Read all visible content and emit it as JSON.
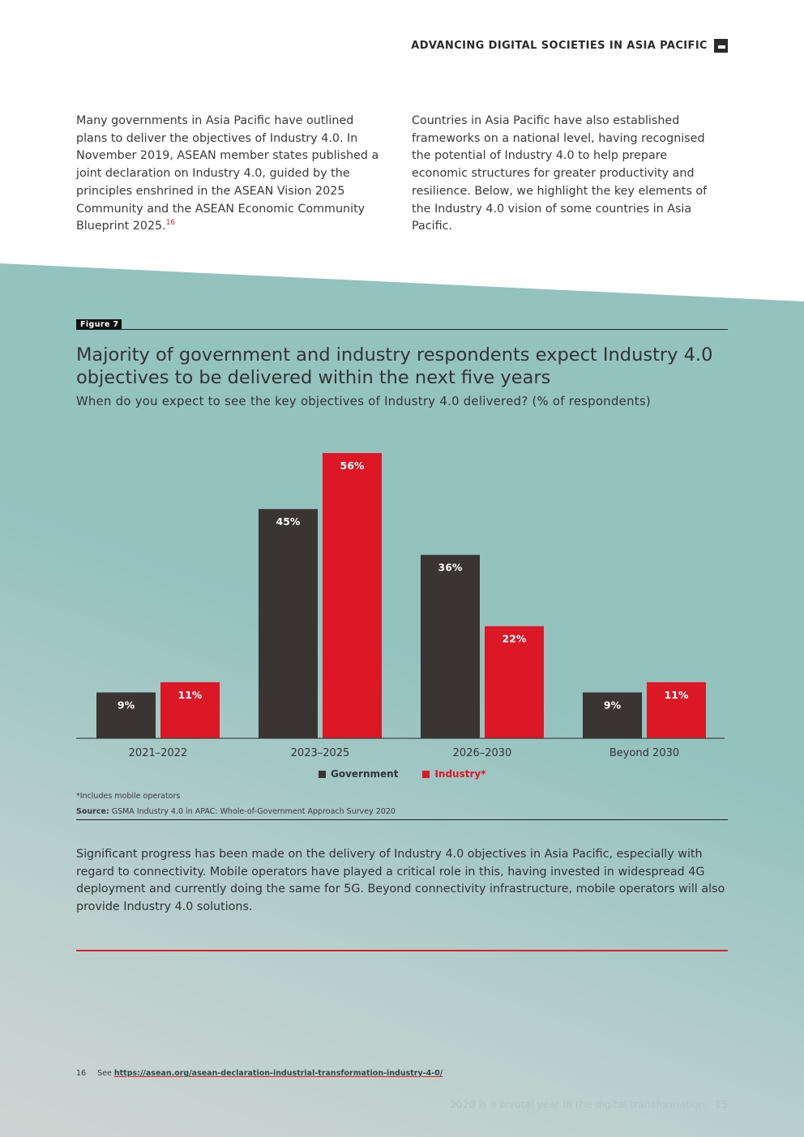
{
  "header": {
    "title": "ADVANCING DIGITAL SOCIETIES IN ASIA PACIFIC",
    "logo_icon": "report-logo-icon"
  },
  "intro": {
    "left_text": "Many governments in Asia Pacific have outlined plans to deliver the objectives of Industry 4.0. In November 2019, ASEAN member states published a joint declaration on Industry 4.0, guided by the principles enshrined in the ASEAN Vision 2025 Community and the ASEAN Economic Community Blueprint 2025.",
    "left_footnote_ref": "16",
    "right_text": "Countries in Asia Pacific have also established frameworks on a national level, having recognised the potential of Industry 4.0 to help prepare economic structures for greater productivity and resilience. Below, we highlight the key elements of the Industry 4.0 vision of some countries in Asia Pacific."
  },
  "figure": {
    "tag": "Figure 7",
    "title": "Majority of government and industry respondents expect Industry 4.0 objectives to be delivered within the next five years",
    "subtitle": "When do you expect to see the key objectives of Industry 4.0 delivered? (% of respondents)",
    "note": "*Includes mobile operators",
    "source_label": "Source:",
    "source_text": " GSMA Industry 4.0 in APAC: Whole-of-Government Approach Survey 2020"
  },
  "chart_data": {
    "type": "bar",
    "categories": [
      "2021–2022",
      "2023–2025",
      "2026–2030",
      "Beyond 2030"
    ],
    "series": [
      {
        "name": "Government",
        "values": [
          9,
          45,
          36,
          9
        ],
        "color": "#3a3533"
      },
      {
        "name": "Industry*",
        "values": [
          11,
          56,
          22,
          11
        ],
        "color": "#dc1726"
      }
    ],
    "unit": "%",
    "ylim": [
      0,
      56
    ],
    "legend_position": "bottom-center",
    "grid": false
  },
  "body": {
    "paragraph": "Significant progress has been made on the delivery of Industry 4.0 objectives in Asia Pacific, especially with regard to connectivity. Mobile operators have played a critical role in this, having invested in widespread 4G deployment and currently doing the same for 5G. Beyond connectivity infrastructure, mobile operators will also provide Industry 4.0 solutions."
  },
  "footnote": {
    "number": "16",
    "prefix": "See",
    "link": "https://asean.org/asean-declaration-industrial-transformation-industry-4-0/"
  },
  "footer": {
    "text": "2020 is a pivotal year in the digital transformation",
    "page_number": "15"
  },
  "colors": {
    "accent_red": "#d9202b",
    "government": "#3a3533",
    "industry": "#dc1726",
    "teal": "#93c2bf"
  }
}
